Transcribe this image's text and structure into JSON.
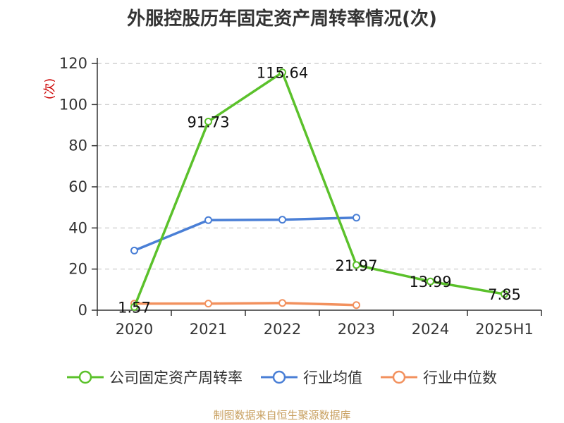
{
  "title": "外服控股历年固定资产周转率情况(次)",
  "source": "制图数据来自恒生聚源数据库",
  "chart_data": {
    "type": "line",
    "title": "外服控股历年固定资产周转率情况(次)",
    "ylabel": "(次)",
    "ylim": [
      0,
      120
    ],
    "yticks": [
      0,
      20,
      40,
      60,
      80,
      100,
      120
    ],
    "grid": "horizontal dashed",
    "legend_position": "bottom",
    "categories": [
      "2020",
      "2021",
      "2022",
      "2023",
      "2024",
      "2025H1"
    ],
    "series": [
      {
        "name": "公司固定资产周转率",
        "color": "#5bc12b",
        "values": [
          1.57,
          91.73,
          115.64,
          21.97,
          13.99,
          7.85
        ],
        "labels": [
          "1.57",
          "91.73",
          "115.64",
          "21.97",
          "13.99",
          "7.85"
        ]
      },
      {
        "name": "行业均值",
        "color": "#4a7fd6",
        "values": [
          29,
          43.8,
          44,
          45,
          null,
          null
        ]
      },
      {
        "name": "行业中位数",
        "color": "#f2915e",
        "values": [
          3.2,
          3.2,
          3.5,
          2.5,
          null,
          null
        ]
      }
    ]
  }
}
